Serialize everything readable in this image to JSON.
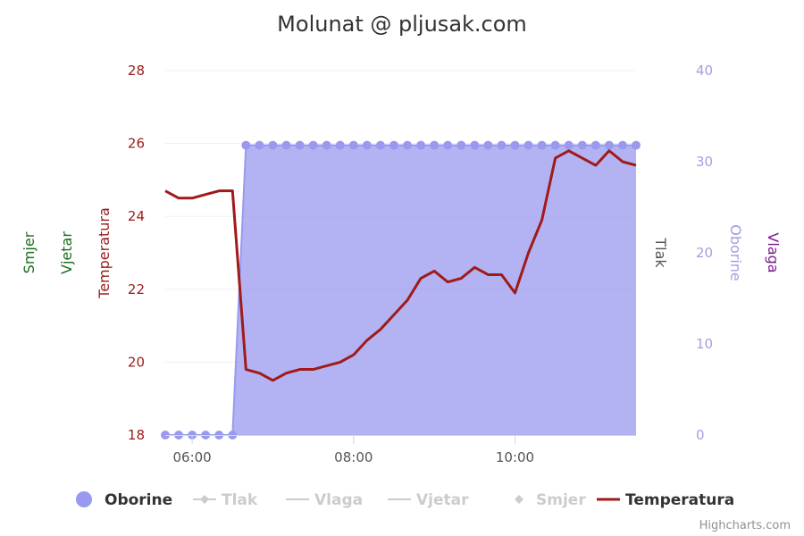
{
  "chart_data": {
    "type": "line",
    "title": "Molunat @ pljusak.com",
    "credits": "Highcharts.com",
    "x_axis": {
      "ticks": [
        "06:00",
        "08:00",
        "10:00"
      ],
      "tick_values": [
        6.0,
        8.0,
        10.0
      ],
      "range": [
        5.6667,
        11.5
      ]
    },
    "y_axes": [
      {
        "id": "temp",
        "title": "Temperatura",
        "side": "left",
        "range": [
          18,
          28
        ],
        "ticks": [
          "18",
          "20",
          "22",
          "24",
          "26",
          "28"
        ],
        "color": "#9b1c1c"
      },
      {
        "id": "vjetar",
        "title": "Vjetar",
        "side": "left",
        "color": "#1a6e1a"
      },
      {
        "id": "smjer",
        "title": "Smjer",
        "side": "left",
        "color": "#1a6e1a"
      },
      {
        "id": "rain",
        "title": "Oborine",
        "side": "right",
        "range": [
          0,
          40
        ],
        "ticks": [
          "0",
          "10",
          "20",
          "30",
          "40"
        ],
        "color": "#a0a0e0"
      },
      {
        "id": "tlak",
        "title": "Tlak",
        "side": "right",
        "color": "#555555"
      },
      {
        "id": "vlaga",
        "title": "Vlaga",
        "side": "right",
        "color": "#7b1a8c"
      }
    ],
    "legend": {
      "placement": "bottom",
      "items": [
        {
          "name": "Oborine",
          "symbol": "circle",
          "color": "#9999f0",
          "active": true
        },
        {
          "name": "Tlak",
          "symbol": "diamond-line",
          "color": "#cccccc",
          "active": false
        },
        {
          "name": "Vlaga",
          "symbol": "line",
          "color": "#cccccc",
          "active": false
        },
        {
          "name": "Vjetar",
          "symbol": "line",
          "color": "#cccccc",
          "active": false
        },
        {
          "name": "Smjer",
          "symbol": "diamond",
          "color": "#cccccc",
          "active": false
        },
        {
          "name": "Temperatura",
          "symbol": "line",
          "color": "#a11a1a",
          "active": true
        }
      ]
    },
    "series": [
      {
        "name": "Oborine",
        "axis": "rain",
        "type": "area",
        "color": "#9999f0",
        "x": [
          5.6667,
          5.8333,
          6.0,
          6.1667,
          6.3333,
          6.5,
          6.6667,
          6.8333,
          7.0,
          7.1667,
          7.3333,
          7.5,
          7.6667,
          7.8333,
          8.0,
          8.1667,
          8.3333,
          8.5,
          8.6667,
          8.8333,
          9.0,
          9.1667,
          9.3333,
          9.5,
          9.6667,
          9.8333,
          10.0,
          10.1667,
          10.3333,
          10.5,
          10.6667,
          10.8333,
          11.0,
          11.1667,
          11.3333,
          11.5
        ],
        "y": [
          0,
          0,
          0,
          0,
          0,
          0,
          31.8,
          31.8,
          31.8,
          31.8,
          31.8,
          31.8,
          31.8,
          31.8,
          31.8,
          31.8,
          31.8,
          31.8,
          31.8,
          31.8,
          31.8,
          31.8,
          31.8,
          31.8,
          31.8,
          31.8,
          31.8,
          31.8,
          31.8,
          31.8,
          31.8,
          31.8,
          31.8,
          31.8,
          31.8,
          31.8
        ],
        "markers_visible_through": 6.5
      },
      {
        "name": "Temperatura",
        "axis": "temp",
        "type": "line",
        "color": "#a11a1a",
        "x": [
          5.6667,
          5.8333,
          6.0,
          6.1667,
          6.3333,
          6.5,
          6.6667,
          6.8333,
          7.0,
          7.1667,
          7.3333,
          7.5,
          7.6667,
          7.8333,
          8.0,
          8.1667,
          8.3333,
          8.5,
          8.6667,
          8.8333,
          9.0,
          9.1667,
          9.3333,
          9.5,
          9.6667,
          9.8333,
          10.0,
          10.1667,
          10.3333,
          10.5,
          10.6667,
          10.8333,
          11.0,
          11.1667,
          11.3333,
          11.5
        ],
        "y": [
          24.7,
          24.5,
          24.5,
          24.6,
          24.7,
          24.7,
          19.8,
          19.7,
          19.5,
          19.7,
          19.8,
          19.8,
          19.9,
          20.0,
          20.2,
          20.6,
          20.9,
          21.3,
          21.7,
          22.3,
          22.5,
          22.2,
          22.3,
          22.6,
          22.4,
          22.4,
          21.9,
          23.0,
          23.9,
          25.6,
          25.8,
          25.6,
          25.4,
          25.8,
          25.5,
          25.4
        ]
      }
    ]
  }
}
